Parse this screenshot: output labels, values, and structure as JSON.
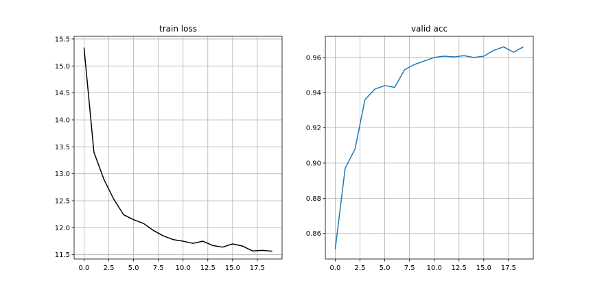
{
  "chart_data": [
    {
      "type": "line",
      "title": "train loss",
      "xlabel": "",
      "ylabel": "",
      "x": [
        0,
        1,
        2,
        3,
        4,
        5,
        6,
        7,
        8,
        9,
        10,
        11,
        12,
        13,
        14,
        15,
        16,
        17,
        18,
        19
      ],
      "series": [
        {
          "color": "#000000",
          "values": [
            15.34,
            13.4,
            12.9,
            12.53,
            12.24,
            12.15,
            12.08,
            11.95,
            11.85,
            11.78,
            11.75,
            11.71,
            11.75,
            11.67,
            11.64,
            11.7,
            11.66,
            11.57,
            11.58,
            11.565
          ]
        }
      ],
      "xlim": [
        -1.0,
        20.0
      ],
      "ylim": [
        11.42,
        15.55
      ],
      "xticks": [
        0,
        2.5,
        5,
        7.5,
        10,
        12.5,
        15,
        17.5
      ],
      "xtick_labels": [
        "0.0",
        "2.5",
        "5.0",
        "7.5",
        "10.0",
        "12.5",
        "15.0",
        "17.5"
      ],
      "yticks": [
        11.5,
        12.0,
        12.5,
        13.0,
        13.5,
        14.0,
        14.5,
        15.0,
        15.5
      ],
      "ytick_labels": [
        "11.5",
        "12.0",
        "12.5",
        "13.0",
        "13.5",
        "14.0",
        "14.5",
        "15.0",
        "15.5"
      ],
      "grid": true
    },
    {
      "type": "line",
      "title": "valid acc",
      "xlabel": "",
      "ylabel": "",
      "x": [
        0,
        1,
        2,
        3,
        4,
        5,
        6,
        7,
        8,
        9,
        10,
        11,
        12,
        13,
        14,
        15,
        16,
        17,
        18,
        19
      ],
      "series": [
        {
          "color": "#1f77b4",
          "values": [
            0.851,
            0.897,
            0.908,
            0.936,
            0.942,
            0.944,
            0.943,
            0.953,
            0.956,
            0.958,
            0.96,
            0.9607,
            0.9603,
            0.961,
            0.96,
            0.9607,
            0.964,
            0.966,
            0.963,
            0.966
          ]
        }
      ],
      "xlim": [
        -1.0,
        20.0
      ],
      "ylim": [
        0.8455,
        0.972
      ],
      "xticks": [
        0,
        2.5,
        5,
        7.5,
        10,
        12.5,
        15,
        17.5
      ],
      "xtick_labels": [
        "0.0",
        "2.5",
        "5.0",
        "7.5",
        "10.0",
        "12.5",
        "15.0",
        "17.5"
      ],
      "yticks": [
        0.86,
        0.88,
        0.9,
        0.92,
        0.94,
        0.96
      ],
      "ytick_labels": [
        "0.86",
        "0.88",
        "0.90",
        "0.92",
        "0.94",
        "0.96"
      ],
      "grid": true
    }
  ]
}
